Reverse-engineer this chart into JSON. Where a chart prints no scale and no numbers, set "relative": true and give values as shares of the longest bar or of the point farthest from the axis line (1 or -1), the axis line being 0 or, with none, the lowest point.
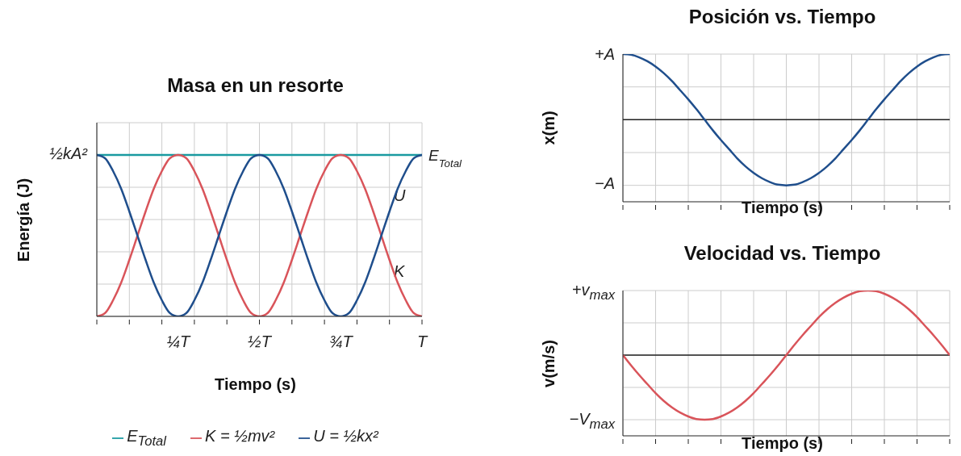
{
  "chart_data": [
    {
      "type": "line",
      "title": "Masa en un resorte",
      "xlabel": "Tiempo (s)",
      "ylabel": "Energía (J)",
      "relative": true,
      "legend": "bottom",
      "grid": true,
      "tick_labels": "x",
      "categories": [
        null,
        null,
        null,
        null,
        null,
        null,
        null,
        null,
        null,
        null,
        "¼T",
        null,
        null,
        null,
        null,
        null,
        null,
        null,
        null,
        null,
        "½T",
        null,
        null,
        null,
        null,
        null,
        null,
        null,
        null,
        null,
        "¾T",
        null,
        null,
        null,
        null,
        null,
        null,
        null,
        null,
        null,
        "T"
      ],
      "series": [
        {
          "name": "E$_{Total}$",
          "color": "#1a9aa0",
          "values": [
            1,
            1,
            1,
            1,
            1,
            1,
            1,
            1,
            1,
            1,
            1,
            1,
            1,
            1,
            1,
            1,
            1,
            1,
            1,
            1,
            1,
            1,
            1,
            1,
            1,
            1,
            1,
            1,
            1,
            1,
            1,
            1,
            1,
            1,
            1,
            1,
            1,
            1,
            1,
            1,
            1
          ]
        },
        {
          "name": "K = ½mv²",
          "color": "#d9545a",
          "values": [
            0,
            0.02,
            0.1,
            0.21,
            0.35,
            0.5,
            0.65,
            0.79,
            0.9,
            0.98,
            1,
            0.98,
            0.9,
            0.79,
            0.65,
            0.5,
            0.35,
            0.21,
            0.1,
            0.02,
            0,
            0.02,
            0.1,
            0.21,
            0.35,
            0.5,
            0.65,
            0.79,
            0.9,
            0.98,
            1,
            0.98,
            0.9,
            0.79,
            0.65,
            0.5,
            0.35,
            0.21,
            0.1,
            0.02,
            0
          ]
        },
        {
          "name": "U = ½kx²",
          "color": "#1f4e8c",
          "values": [
            1,
            0.98,
            0.9,
            0.79,
            0.65,
            0.5,
            0.35,
            0.21,
            0.1,
            0.02,
            0,
            0.02,
            0.1,
            0.21,
            0.35,
            0.5,
            0.65,
            0.79,
            0.9,
            0.98,
            1,
            0.98,
            0.9,
            0.79,
            0.65,
            0.5,
            0.35,
            0.21,
            0.1,
            0.02,
            0,
            0.02,
            0.1,
            0.21,
            0.35,
            0.5,
            0.65,
            0.79,
            0.9,
            0.98,
            1
          ]
        }
      ],
      "annotations": [
        "½kA²",
        {
          "text": "E$_{Total}$",
          "x": "T",
          "y": 1
        },
        "U",
        "K"
      ]
    },
    {
      "type": "line",
      "title": "Posición vs. Tiempo",
      "xlabel": "Tiempo (s)",
      "ylabel": "x(m)",
      "relative": true,
      "grid": true,
      "tick_labels": false,
      "categories": [
        null,
        null,
        null,
        null,
        null,
        null,
        null,
        null,
        null,
        null,
        null,
        null,
        null,
        null,
        null,
        null,
        null,
        null,
        null,
        null,
        null,
        null,
        null,
        null,
        null,
        null,
        null,
        null,
        null,
        null,
        null,
        null,
        null,
        null,
        null,
        null,
        null,
        null,
        null,
        null,
        null
      ],
      "series": [
        {
          "color": "#1f4e8c",
          "values": [
            1,
            0.99,
            0.95,
            0.89,
            0.81,
            0.71,
            0.59,
            0.45,
            0.31,
            0.16,
            0,
            -0.16,
            -0.31,
            -0.45,
            -0.59,
            -0.71,
            -0.81,
            -0.89,
            -0.95,
            -0.99,
            -1,
            -0.99,
            -0.95,
            -0.89,
            -0.81,
            -0.71,
            -0.59,
            -0.45,
            -0.31,
            -0.16,
            0,
            0.16,
            0.31,
            0.45,
            0.59,
            0.71,
            0.81,
            0.89,
            0.95,
            0.99,
            1
          ]
        }
      ],
      "annotations": [
        "+A",
        "−A"
      ]
    },
    {
      "type": "line",
      "title": "Velocidad vs. Tiempo",
      "xlabel": "Tiempo (s)",
      "ylabel": "v(m/s)",
      "relative": true,
      "grid": true,
      "tick_labels": false,
      "categories": [
        null,
        null,
        null,
        null,
        null,
        null,
        null,
        null,
        null,
        null,
        null,
        null,
        null,
        null,
        null,
        null,
        null,
        null,
        null,
        null,
        null,
        null,
        null,
        null,
        null,
        null,
        null,
        null,
        null,
        null,
        null,
        null,
        null,
        null,
        null,
        null,
        null,
        null,
        null,
        null,
        null
      ],
      "series": [
        {
          "color": "#d9545a",
          "values": [
            0,
            -0.16,
            -0.31,
            -0.45,
            -0.59,
            -0.71,
            -0.81,
            -0.89,
            -0.95,
            -0.99,
            -1,
            -0.99,
            -0.95,
            -0.89,
            -0.81,
            -0.71,
            -0.59,
            -0.45,
            -0.31,
            -0.16,
            0,
            0.16,
            0.31,
            0.45,
            0.59,
            0.71,
            0.81,
            0.89,
            0.95,
            0.99,
            1,
            0.99,
            0.95,
            0.89,
            0.81,
            0.71,
            0.59,
            0.45,
            0.31,
            0.16,
            0
          ]
        }
      ],
      "annotations": [
        "+v$_{max}$",
        "−V$_{max}$"
      ]
    }
  ]
}
